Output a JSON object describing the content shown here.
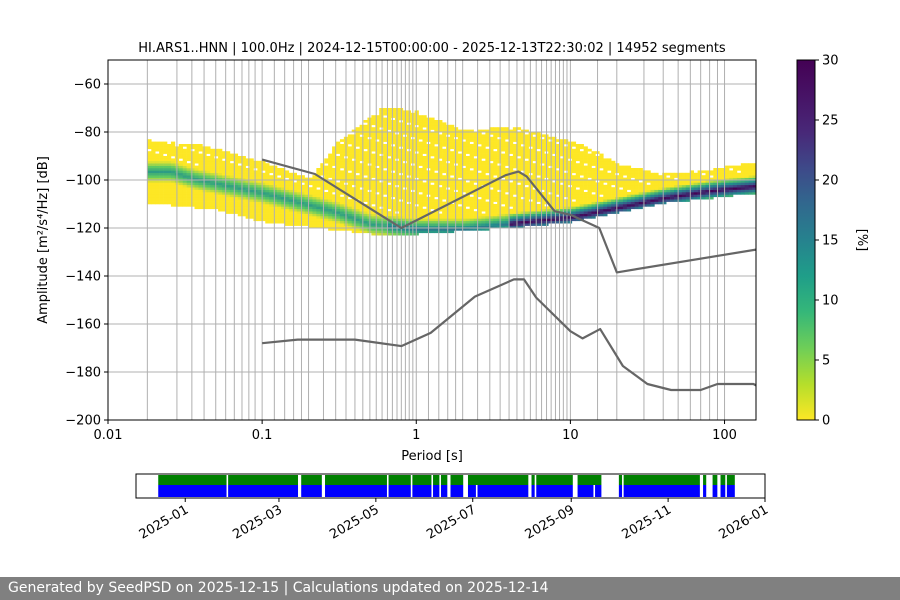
{
  "footer": {
    "text": "Generated by SeedPSD on 2025-12-15 | Calculations updated on 2025-12-14"
  },
  "colors": {
    "model_curve": "#666666",
    "grid": "#b0b0b0",
    "availability_top": "#008000",
    "availability_bottom": "#0000ff",
    "colormap": [
      "#fde725",
      "#5ec962",
      "#21918c",
      "#3b528b",
      "#440154"
    ]
  },
  "chart_data": [
    {
      "type": "heatmap",
      "title": "HI.ARS1..HNN | 100.0Hz | 2024-12-15T00:00:00 - 2025-12-13T22:30:02 | 14952 segments",
      "xlabel": "Period [s]",
      "ylabel": "Amplitude [m²/s⁴/Hz] [dB]",
      "x_scale": "log",
      "xlim": [
        0.01,
        160
      ],
      "ylim": [
        -200,
        -50
      ],
      "x_ticks": [
        {
          "value": 0.01,
          "label": "0.01"
        },
        {
          "value": 0.1,
          "label": "0.1"
        },
        {
          "value": 1,
          "label": "1"
        },
        {
          "value": 10,
          "label": "10"
        },
        {
          "value": 100,
          "label": "100"
        }
      ],
      "y_ticks": [
        -60,
        -80,
        -100,
        -120,
        -140,
        -160,
        -180,
        -200
      ],
      "grid": "vertical lines at period bin centres, horizontal lines at y ticks",
      "period_bins": [
        0.018,
        0.028,
        0.035,
        0.042,
        0.05,
        0.058,
        0.066,
        0.074,
        0.082,
        0.09,
        0.1,
        0.12,
        0.14,
        0.16,
        0.18,
        0.2,
        0.25,
        0.3,
        0.35,
        0.4,
        0.45,
        0.5,
        0.55,
        0.6,
        0.65,
        0.7,
        0.75,
        0.8,
        0.85,
        0.9,
        0.95,
        1.0,
        1.2,
        1.4,
        1.6,
        1.8,
        2.0,
        2.5,
        3.0,
        3.5,
        4.0,
        4.5,
        5.0,
        5.5,
        6.0,
        6.5,
        7.0,
        7.5,
        8.0,
        8.5,
        9.0,
        9.5,
        10,
        15,
        20,
        30,
        40,
        50,
        60,
        70,
        80,
        90,
        100
      ],
      "colorbar": {
        "label": "[%]",
        "min": 0,
        "max": 30,
        "ticks": [
          0,
          5,
          10,
          15,
          20,
          25,
          30
        ]
      },
      "distribution": {
        "dominant_ridge": [
          {
            "period": 0.018,
            "db": -97
          },
          {
            "period": 0.025,
            "db": -97
          },
          {
            "period": 0.035,
            "db": -100
          },
          {
            "period": 0.05,
            "db": -102
          },
          {
            "period": 0.1,
            "db": -106
          },
          {
            "period": 0.2,
            "db": -111
          },
          {
            "period": 0.3,
            "db": -114
          },
          {
            "period": 0.5,
            "db": -119
          },
          {
            "period": 1.0,
            "db": -121
          },
          {
            "period": 2.0,
            "db": -121
          },
          {
            "period": 5.0,
            "db": -118
          },
          {
            "period": 10,
            "db": -116
          },
          {
            "period": 20,
            "db": -112
          },
          {
            "period": 40,
            "db": -108
          },
          {
            "period": 80,
            "db": -105
          },
          {
            "period": 160,
            "db": -103
          }
        ],
        "upper_envelope": [
          {
            "period": 0.018,
            "db": -84
          },
          {
            "period": 0.04,
            "db": -86
          },
          {
            "period": 0.1,
            "db": -93
          },
          {
            "period": 0.2,
            "db": -100
          },
          {
            "period": 0.3,
            "db": -85
          },
          {
            "period": 0.6,
            "db": -70
          },
          {
            "period": 1.0,
            "db": -72
          },
          {
            "period": 2.0,
            "db": -80
          },
          {
            "period": 4.0,
            "db": -78
          },
          {
            "period": 7.0,
            "db": -82
          },
          {
            "period": 12,
            "db": -86
          },
          {
            "period": 20,
            "db": -94
          },
          {
            "period": 40,
            "db": -98
          },
          {
            "period": 80,
            "db": -96
          },
          {
            "period": 160,
            "db": -93
          }
        ],
        "lower_envelope": [
          {
            "period": 0.018,
            "db": -110
          },
          {
            "period": 0.05,
            "db": -113
          },
          {
            "period": 0.1,
            "db": -118
          },
          {
            "period": 0.5,
            "db": -123
          },
          {
            "period": 1.0,
            "db": -123
          },
          {
            "period": 5.0,
            "db": -120
          },
          {
            "period": 10,
            "db": -118
          },
          {
            "period": 20,
            "db": -114
          },
          {
            "period": 40,
            "db": -110
          },
          {
            "period": 160,
            "db": -106
          }
        ]
      },
      "series": [
        {
          "points": [
            {
              "x": 0.1,
              "y": -91.5
            },
            {
              "x": 0.22,
              "y": -97.5
            },
            {
              "x": 0.8,
              "y": -120
            },
            {
              "x": 3.8,
              "y": -98
            },
            {
              "x": 4.6,
              "y": -96.5
            },
            {
              "x": 5.2,
              "y": -98.5
            },
            {
              "x": 7.9,
              "y": -113
            },
            {
              "x": 10,
              "y": -114.5
            },
            {
              "x": 15.4,
              "y": -120
            },
            {
              "x": 20,
              "y": -138.5
            },
            {
              "x": 160,
              "y": -129
            }
          ]
        },
        {
          "points": [
            {
              "x": 0.1,
              "y": -168
            },
            {
              "x": 0.17,
              "y": -166.5
            },
            {
              "x": 0.4,
              "y": -166.5
            },
            {
              "x": 0.8,
              "y": -169.2
            },
            {
              "x": 1.24,
              "y": -163.7
            },
            {
              "x": 2.4,
              "y": -148.6
            },
            {
              "x": 4.3,
              "y": -141.4
            },
            {
              "x": 5.0,
              "y": -141.4
            },
            {
              "x": 6.0,
              "y": -149
            },
            {
              "x": 10,
              "y": -163
            },
            {
              "x": 12,
              "y": -166
            },
            {
              "x": 15.6,
              "y": -162.1
            },
            {
              "x": 21.9,
              "y": -177.5
            },
            {
              "x": 31.6,
              "y": -185
            },
            {
              "x": 45,
              "y": -187.5
            },
            {
              "x": 70,
              "y": -187.5
            },
            {
              "x": 90,
              "y": -185
            },
            {
              "x": 154,
              "y": -185
            },
            {
              "x": 160,
              "y": -185.6
            }
          ]
        }
      ]
    },
    {
      "type": "bar",
      "subtype": "data availability timeline",
      "xlim": [
        "2024-12-01",
        "2026-01-01"
      ],
      "x_ticks": [
        "2025-01",
        "2025-03",
        "2025-05",
        "2025-07",
        "2025-09",
        "2025-11",
        "2026-01"
      ],
      "data_start": "2024-12-15",
      "data_end": "2025-12-13",
      "gaps": [
        {
          "start": "2025-01-27",
          "end": "2025-01-28"
        },
        {
          "start": "2025-03-13",
          "end": "2025-03-15"
        },
        {
          "start": "2025-03-28",
          "end": "2025-03-30"
        },
        {
          "start": "2025-05-08",
          "end": "2025-05-09"
        },
        {
          "start": "2025-05-23",
          "end": "2025-05-24"
        },
        {
          "start": "2025-06-05",
          "end": "2025-06-06"
        },
        {
          "start": "2025-06-10",
          "end": "2025-06-11"
        },
        {
          "start": "2025-06-15",
          "end": "2025-06-17"
        },
        {
          "start": "2025-06-25",
          "end": "2025-06-28"
        },
        {
          "start": "2025-08-05",
          "end": "2025-08-07"
        },
        {
          "start": "2025-08-09",
          "end": "2025-08-10"
        },
        {
          "start": "2025-09-02",
          "end": "2025-09-05"
        },
        {
          "start": "2025-09-20",
          "end": "2025-10-01"
        },
        {
          "start": "2025-10-03",
          "end": "2025-10-04"
        },
        {
          "start": "2025-11-21",
          "end": "2025-11-23"
        },
        {
          "start": "2025-11-25",
          "end": "2025-11-29"
        },
        {
          "start": "2025-12-02",
          "end": "2025-12-04"
        },
        {
          "start": "2025-12-07",
          "end": "2025-12-08"
        }
      ],
      "bottom_only_gaps": [
        {
          "start": "2025-07-03",
          "end": "2025-07-04"
        },
        {
          "start": "2025-09-15",
          "end": "2025-09-16"
        }
      ]
    }
  ]
}
